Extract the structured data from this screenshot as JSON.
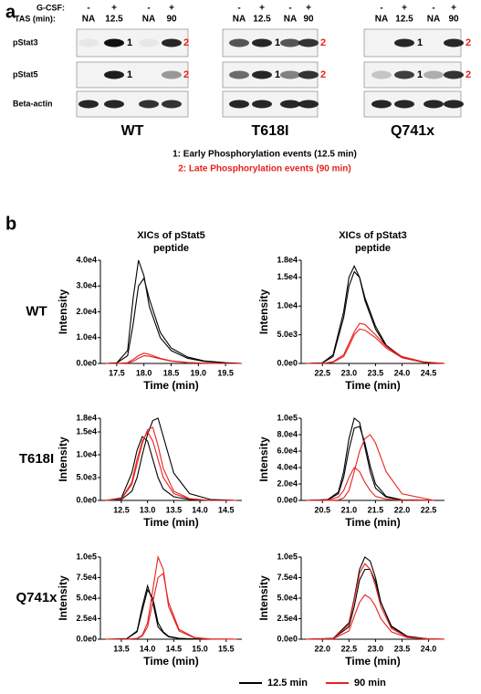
{
  "panel_a": {
    "label": "a",
    "gcsf_label": "G-CSF:",
    "tas_label": "TAS (min):",
    "lane_signs": [
      "-",
      "+",
      "-",
      "+"
    ],
    "lane_times": [
      "NA",
      "12.5",
      "NA",
      "90"
    ],
    "rows": [
      "pStat3",
      "pStat5",
      "Beta-actin"
    ],
    "groups": [
      "WT",
      "T618I",
      "Q741x"
    ],
    "band_marks": [
      "1",
      "2"
    ],
    "notes": [
      "1: Early Phosphorylation events (12.5 min)",
      "2: Late Phosphorylation events (90 min)"
    ]
  },
  "panel_b": {
    "label": "b",
    "column_titles": [
      [
        "XICs of pStat5",
        "peptide"
      ],
      [
        "XICs of pStat3",
        "peptide"
      ]
    ],
    "row_labels": [
      "WT",
      "T618I",
      "Q741x"
    ]
  },
  "chart_data": [
    {
      "type": "line",
      "x_label": "Time (min)",
      "y_label": "Intensity",
      "xlim": [
        17.2,
        19.8
      ],
      "ylim": [
        0,
        40000
      ],
      "xticks": [
        17.5,
        {
          "value": 18,
          "label": "18.0"
        },
        18.5,
        {
          "value": 19,
          "label": "19.0"
        },
        19.5
      ],
      "yticks": [
        {
          "value": 0,
          "label": "0.0e0"
        },
        {
          "value": 10000,
          "label": "1.0e4"
        },
        {
          "value": 20000,
          "label": "2.0e4"
        },
        {
          "value": 30000,
          "label": "3.0e4"
        },
        {
          "value": 40000,
          "label": "4.0e4"
        }
      ],
      "x": [
        17.3,
        17.5,
        17.7,
        17.8,
        17.9,
        18.0,
        18.1,
        18.3,
        18.5,
        18.8,
        19.1,
        19.5,
        19.8
      ],
      "series": [
        {
          "name": "12.5 min",
          "color": "#000000",
          "values": [
            0,
            200,
            5000,
            25000,
            40000,
            34000,
            22000,
            10000,
            5000,
            2000,
            800,
            200,
            0
          ]
        },
        {
          "name": "12.5 min",
          "color": "#000000",
          "values": [
            0,
            200,
            3000,
            15000,
            30000,
            33000,
            25000,
            12000,
            6000,
            2500,
            1000,
            300,
            0
          ]
        },
        {
          "name": "90 min",
          "color": "#e8201e",
          "values": [
            0,
            0,
            300,
            1500,
            3000,
            4000,
            3500,
            2000,
            1000,
            400,
            100,
            0,
            0
          ]
        },
        {
          "name": "90 min",
          "color": "#e8201e",
          "values": [
            0,
            0,
            200,
            800,
            2000,
            3000,
            2800,
            1800,
            900,
            300,
            100,
            0,
            0
          ]
        }
      ]
    },
    {
      "type": "line",
      "x_label": "Time (min)",
      "y_label": "Intensity",
      "xlim": [
        22.1,
        24.8
      ],
      "ylim": [
        0,
        18000
      ],
      "xticks": [
        22.5,
        {
          "value": 23,
          "label": "23.0"
        },
        23.5,
        {
          "value": 24,
          "label": "24.0"
        },
        24.5
      ],
      "yticks": [
        {
          "value": 0,
          "label": "0.0e0"
        },
        {
          "value": 5000,
          "label": "5.0e3"
        },
        {
          "value": 10000,
          "label": "1.0e4"
        },
        {
          "value": 15000,
          "label": "1.5e4"
        },
        {
          "value": 18000,
          "label": "1.8e4"
        }
      ],
      "x": [
        22.2,
        22.5,
        22.7,
        22.9,
        23.0,
        23.1,
        23.2,
        23.3,
        23.5,
        23.7,
        24.0,
        24.4,
        24.8
      ],
      "series": [
        {
          "name": "12.5 min",
          "color": "#000000",
          "values": [
            0,
            100,
            1500,
            9000,
            15000,
            17000,
            15000,
            11000,
            6000,
            3000,
            1000,
            200,
            0
          ]
        },
        {
          "name": "12.5 min",
          "color": "#000000",
          "values": [
            0,
            100,
            1200,
            8000,
            13500,
            16000,
            15000,
            11500,
            6500,
            3200,
            1100,
            200,
            0
          ]
        },
        {
          "name": "90 min",
          "color": "#e8201e",
          "values": [
            0,
            0,
            300,
            1500,
            3500,
            5500,
            7000,
            6800,
            5000,
            3000,
            1200,
            300,
            0
          ]
        },
        {
          "name": "90 min",
          "color": "#e8201e",
          "values": [
            0,
            0,
            200,
            1200,
            3000,
            5000,
            6000,
            5800,
            4500,
            2700,
            1000,
            200,
            0
          ]
        }
      ]
    },
    {
      "type": "line",
      "x_label": "Time (min)",
      "y_label": "Intensity",
      "xlim": [
        12.1,
        14.8
      ],
      "ylim": [
        0,
        18000
      ],
      "xticks": [
        12.5,
        {
          "value": 13,
          "label": "13.0"
        },
        13.5,
        {
          "value": 14,
          "label": "14.0"
        },
        14.5
      ],
      "yticks": [
        {
          "value": 0,
          "label": "0.0e0"
        },
        {
          "value": 5000,
          "label": "5.0e3"
        },
        {
          "value": 10000,
          "label": "1.0e4"
        },
        {
          "value": 15000,
          "label": "1.5e4"
        },
        {
          "value": 18000,
          "label": "1.8e4"
        }
      ],
      "x": [
        12.2,
        12.5,
        12.7,
        12.8,
        12.9,
        13.0,
        13.1,
        13.2,
        13.3,
        13.5,
        13.8,
        14.2,
        14.7
      ],
      "series": [
        {
          "name": "12.5 min",
          "color": "#000000",
          "values": [
            0,
            500,
            6000,
            11000,
            14000,
            13000,
            9000,
            5000,
            2500,
            800,
            200,
            0,
            0
          ]
        },
        {
          "name": "12.5 min",
          "color": "#000000",
          "values": [
            0,
            200,
            2000,
            5000,
            10000,
            14500,
            17500,
            18000,
            14000,
            6000,
            1500,
            200,
            0
          ]
        },
        {
          "name": "90 min",
          "color": "#e8201e",
          "values": [
            0,
            300,
            4000,
            9000,
            13000,
            15000,
            13000,
            9000,
            5000,
            1500,
            300,
            0,
            0
          ]
        },
        {
          "name": "90 min",
          "color": "#e8201e",
          "values": [
            0,
            300,
            3500,
            8000,
            12500,
            15500,
            16000,
            12000,
            7000,
            2000,
            400,
            0,
            0
          ]
        }
      ]
    },
    {
      "type": "line",
      "x_label": "Time (min)",
      "y_label": "Intensity",
      "xlim": [
        20.1,
        22.8
      ],
      "ylim": [
        0,
        100000
      ],
      "xticks": [
        20.5,
        {
          "value": 21,
          "label": "21.0"
        },
        21.5,
        {
          "value": 22,
          "label": "22.0"
        },
        22.5
      ],
      "yticks": [
        {
          "value": 0,
          "label": "0.0e0"
        },
        {
          "value": 20000,
          "label": "2.0e4"
        },
        {
          "value": 40000,
          "label": "4.0e4"
        },
        {
          "value": 60000,
          "label": "6.0e4"
        },
        {
          "value": 80000,
          "label": "8.0e4"
        },
        {
          "value": 100000,
          "label": "1.0e5"
        }
      ],
      "x": [
        20.2,
        20.6,
        20.8,
        20.9,
        21.0,
        21.1,
        21.2,
        21.3,
        21.4,
        21.5,
        21.7,
        22.0,
        22.6
      ],
      "series": [
        {
          "name": "12.5 min",
          "color": "#000000",
          "values": [
            0,
            1000,
            10000,
            35000,
            75000,
            100000,
            95000,
            65000,
            35000,
            15000,
            4000,
            500,
            0
          ]
        },
        {
          "name": "12.5 min",
          "color": "#000000",
          "values": [
            0,
            800,
            8000,
            28000,
            62000,
            88000,
            90000,
            70000,
            42000,
            20000,
            5000,
            600,
            0
          ]
        },
        {
          "name": "90 min",
          "color": "#e8201e",
          "values": [
            0,
            500,
            4000,
            12000,
            28000,
            40000,
            35000,
            22000,
            12000,
            5000,
            1500,
            200,
            0
          ]
        },
        {
          "name": "90 min",
          "color": "#e8201e",
          "values": [
            0,
            0,
            500,
            3000,
            12000,
            35000,
            60000,
            75000,
            80000,
            70000,
            35000,
            8000,
            0
          ]
        }
      ]
    },
    {
      "type": "line",
      "x_label": "Time (min)",
      "y_label": "Intensity",
      "xlim": [
        13.1,
        15.8
      ],
      "ylim": [
        0,
        100000
      ],
      "xticks": [
        13.5,
        {
          "value": 14,
          "label": "14.0"
        },
        14.5,
        {
          "value": 15,
          "label": "15.0"
        },
        15.5
      ],
      "yticks": [
        {
          "value": 0,
          "label": "0.0e0"
        },
        {
          "value": 25000,
          "label": "2.5e4"
        },
        {
          "value": 50000,
          "label": "5.0e4"
        },
        {
          "value": 75000,
          "label": "7.5e4"
        },
        {
          "value": 100000,
          "label": "1.0e5"
        }
      ],
      "x": [
        13.2,
        13.6,
        13.8,
        13.9,
        14.0,
        14.1,
        14.2,
        14.3,
        14.4,
        14.6,
        14.9,
        15.2,
        15.7
      ],
      "series": [
        {
          "name": "12.5 min",
          "color": "#000000",
          "values": [
            0,
            500,
            10000,
            40000,
            65000,
            45000,
            15000,
            8000,
            3000,
            800,
            200,
            0,
            0
          ]
        },
        {
          "name": "12.5 min",
          "color": "#000000",
          "values": [
            0,
            500,
            9000,
            35000,
            60000,
            50000,
            20000,
            9000,
            3500,
            1000,
            200,
            0,
            0
          ]
        },
        {
          "name": "90 min",
          "color": "#e8201e",
          "values": [
            0,
            0,
            1000,
            5000,
            20000,
            60000,
            100000,
            85000,
            40000,
            10000,
            1500,
            200,
            0
          ]
        },
        {
          "name": "90 min",
          "color": "#e8201e",
          "values": [
            0,
            0,
            800,
            4000,
            15000,
            45000,
            75000,
            80000,
            45000,
            12000,
            2000,
            300,
            0
          ]
        }
      ]
    },
    {
      "type": "line",
      "x_label": "Time (min)",
      "y_label": "Intensity",
      "xlim": [
        21.6,
        24.3
      ],
      "ylim": [
        0,
        100000
      ],
      "xticks": [
        {
          "value": 22,
          "label": "22.0"
        },
        22.5,
        {
          "value": 23,
          "label": "23.0"
        },
        23.5,
        {
          "value": 24,
          "label": "24.0"
        }
      ],
      "yticks": [
        {
          "value": 0,
          "label": "0.0e0"
        },
        {
          "value": 25000,
          "label": "2.5e4"
        },
        {
          "value": 50000,
          "label": "5.0e4"
        },
        {
          "value": 75000,
          "label": "7.5e4"
        },
        {
          "value": 100000,
          "label": "1.0e5"
        }
      ],
      "x": [
        21.7,
        22.2,
        22.5,
        22.6,
        22.7,
        22.8,
        22.9,
        23.0,
        23.1,
        23.3,
        23.6,
        24.0,
        24.3
      ],
      "series": [
        {
          "name": "12.5 min",
          "color": "#000000",
          "values": [
            0,
            1000,
            20000,
            50000,
            85000,
            100000,
            95000,
            75000,
            45000,
            15000,
            3000,
            300,
            0
          ]
        },
        {
          "name": "12.5 min",
          "color": "#000000",
          "values": [
            0,
            800,
            15000,
            40000,
            72000,
            85000,
            85000,
            70000,
            45000,
            16000,
            3500,
            300,
            0
          ]
        },
        {
          "name": "90 min",
          "color": "#e8201e",
          "values": [
            0,
            800,
            18000,
            48000,
            80000,
            92000,
            85000,
            65000,
            40000,
            13000,
            2500,
            300,
            0
          ]
        },
        {
          "name": "90 min",
          "color": "#e8201e",
          "values": [
            0,
            500,
            10000,
            28000,
            45000,
            54000,
            50000,
            40000,
            25000,
            9000,
            2000,
            200,
            0
          ]
        }
      ]
    }
  ]
}
